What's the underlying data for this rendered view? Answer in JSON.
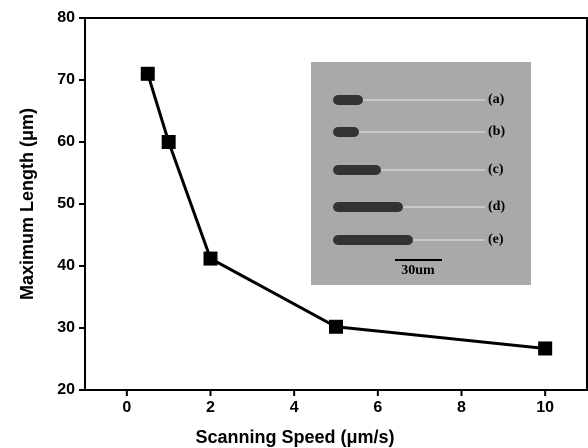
{
  "chart_data": {
    "type": "line",
    "x_label": "Scanning Speed (μm/s)",
    "y_label": "Maximum Length (μm)",
    "x": [
      0.5,
      1,
      2,
      5,
      10
    ],
    "series": [
      {
        "color": "#000000",
        "values": [
          71,
          60,
          41.2,
          30.2,
          26.7
        ]
      }
    ],
    "xlim": [
      -1,
      11
    ],
    "xticks": [
      0,
      2,
      4,
      6,
      8,
      10
    ],
    "ylim": [
      20,
      80
    ],
    "yticks": [
      20,
      30,
      40,
      50,
      60,
      70,
      80
    ],
    "inset": {
      "labels": [
        "(a)",
        "(b)",
        "(c)",
        "(d)",
        "(e)"
      ],
      "scale_bar": "30um"
    }
  }
}
